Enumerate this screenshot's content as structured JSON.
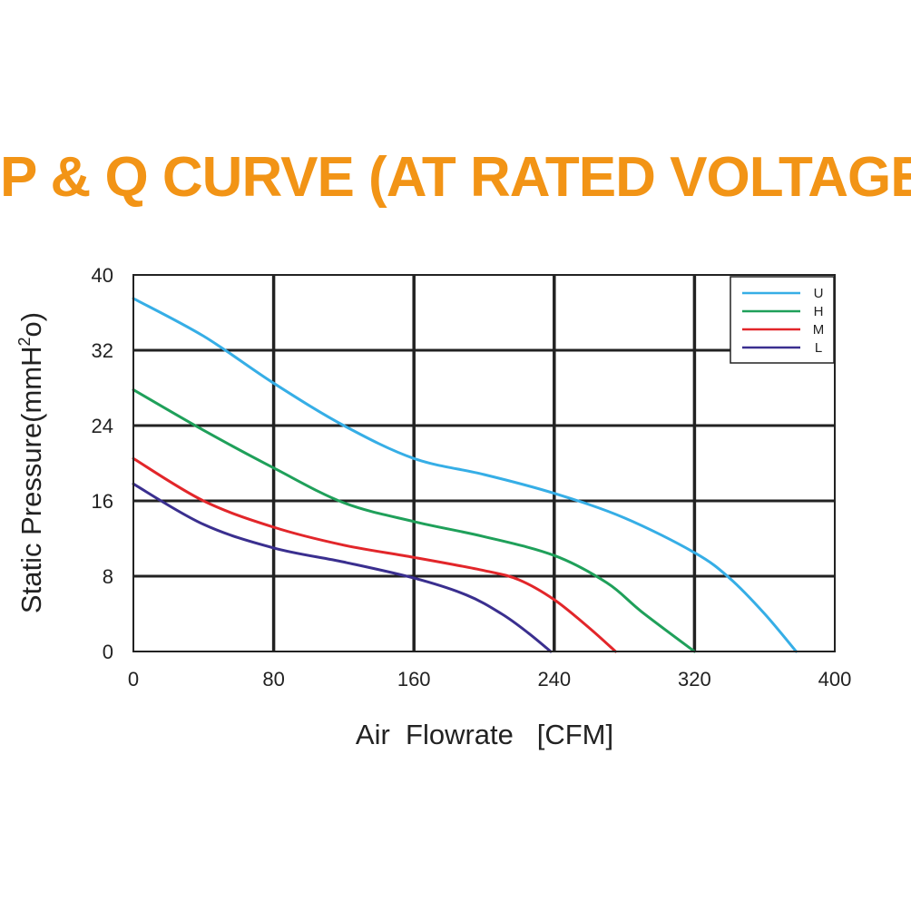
{
  "chart_data": {
    "type": "line",
    "title": "P & Q CURVE (AT RATED VOLTAGE)",
    "xlabel": "Air  Flowrate   [CFM]",
    "ylabel": "Static Pressure(mmH",
    "ylabel_sup": "2",
    "ylabel_end": "o)",
    "xlim": [
      0,
      400
    ],
    "ylim": [
      0,
      40
    ],
    "x_ticks": [
      "0",
      "80",
      "160",
      "240",
      "320",
      "400"
    ],
    "y_ticks": [
      "0",
      "8",
      "16",
      "24",
      "32",
      "40"
    ],
    "grid": true,
    "legend_position": "top-right",
    "series": [
      {
        "name": "U",
        "color": "#36aee6",
        "points": [
          [
            0,
            37.5
          ],
          [
            40,
            33.5
          ],
          [
            80,
            28.5
          ],
          [
            120,
            24
          ],
          [
            160,
            20.5
          ],
          [
            200,
            18.8
          ],
          [
            240,
            16.8
          ],
          [
            280,
            14.2
          ],
          [
            320,
            10.5
          ],
          [
            340,
            7.8
          ],
          [
            360,
            4
          ],
          [
            378,
            0
          ]
        ]
      },
      {
        "name": "H",
        "color": "#1fa05a",
        "points": [
          [
            0,
            27.8
          ],
          [
            40,
            23.5
          ],
          [
            80,
            19.5
          ],
          [
            120,
            15.8
          ],
          [
            160,
            13.8
          ],
          [
            200,
            12.2
          ],
          [
            240,
            10.2
          ],
          [
            270,
            7.3
          ],
          [
            290,
            4.2
          ],
          [
            320,
            0
          ]
        ]
      },
      {
        "name": "M",
        "color": "#e2262a",
        "points": [
          [
            0,
            20.5
          ],
          [
            40,
            16
          ],
          [
            80,
            13.2
          ],
          [
            120,
            11.3
          ],
          [
            160,
            10
          ],
          [
            200,
            8.6
          ],
          [
            220,
            7.6
          ],
          [
            240,
            5.5
          ],
          [
            260,
            2.5
          ],
          [
            275,
            0
          ]
        ]
      },
      {
        "name": "L",
        "color": "#3a2f8f",
        "points": [
          [
            0,
            17.8
          ],
          [
            40,
            13.5
          ],
          [
            80,
            11
          ],
          [
            120,
            9.5
          ],
          [
            160,
            7.8
          ],
          [
            190,
            6
          ],
          [
            210,
            4
          ],
          [
            225,
            2
          ],
          [
            238,
            0
          ]
        ]
      }
    ]
  }
}
